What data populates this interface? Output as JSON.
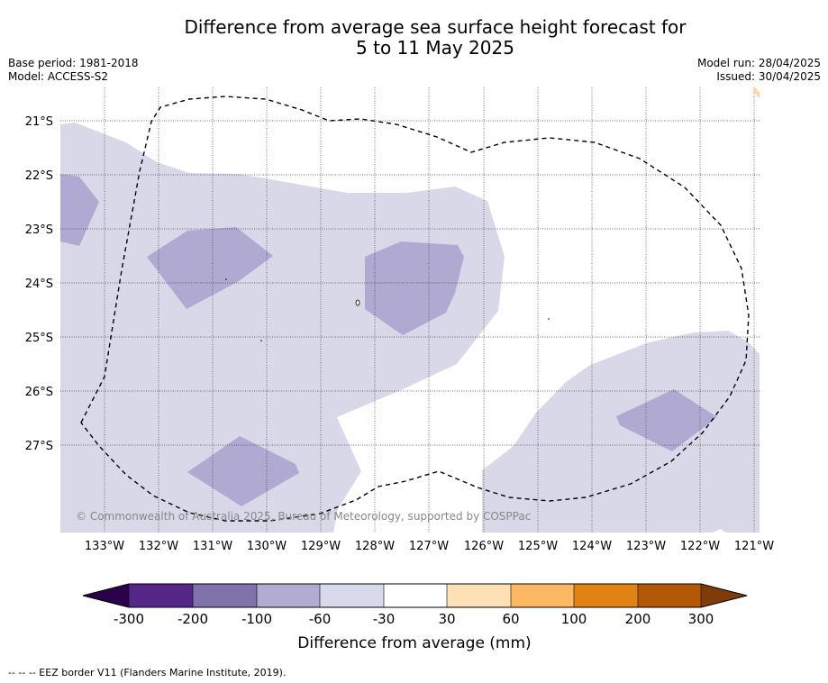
{
  "title": {
    "line1": "Difference from average sea surface height forecast for",
    "line2": "5 to 11 May 2025"
  },
  "meta": {
    "base_period": "Base period: 1981-2018",
    "model": "Model: ACCESS-S2",
    "model_run": "Model run: 28/04/2025",
    "issued": "Issued: 30/04/2025"
  },
  "map": {
    "latitude_labels": [
      "21°S",
      "22°S",
      "23°S",
      "24°S",
      "25°S",
      "26°S",
      "27°S"
    ],
    "longitude_labels": [
      "133°W",
      "132°W",
      "131°W",
      "130°W",
      "129°W",
      "128°W",
      "127°W",
      "126°W",
      "125°W",
      "124°W",
      "123°W",
      "122°W",
      "121°W"
    ],
    "copyright": "© Commonwealth of Australia 2025, Bureau of Meteorology, supported by COSPPac",
    "dominant_category": "-60 to -30 mm",
    "colors": {
      "light_purple": "#d8d8e9",
      "mid_purple": "#b0a9d2",
      "eez_border": "#000000"
    }
  },
  "colorbar": {
    "label": "Difference from average (mm)",
    "ticks": [
      "-300",
      "-200",
      "-100",
      "-60",
      "-30",
      "30",
      "60",
      "100",
      "200",
      "300"
    ],
    "colors": [
      "#2d004b",
      "#542788",
      "#8073ac",
      "#b2abd2",
      "#d8daeb",
      "#ffffff",
      "#fee0b6",
      "#fdb863",
      "#e08214",
      "#b35806",
      "#7f3b08"
    ]
  },
  "footnote": "--  --  -- EEZ border V11 (Flanders Marine Institute, 2019)."
}
